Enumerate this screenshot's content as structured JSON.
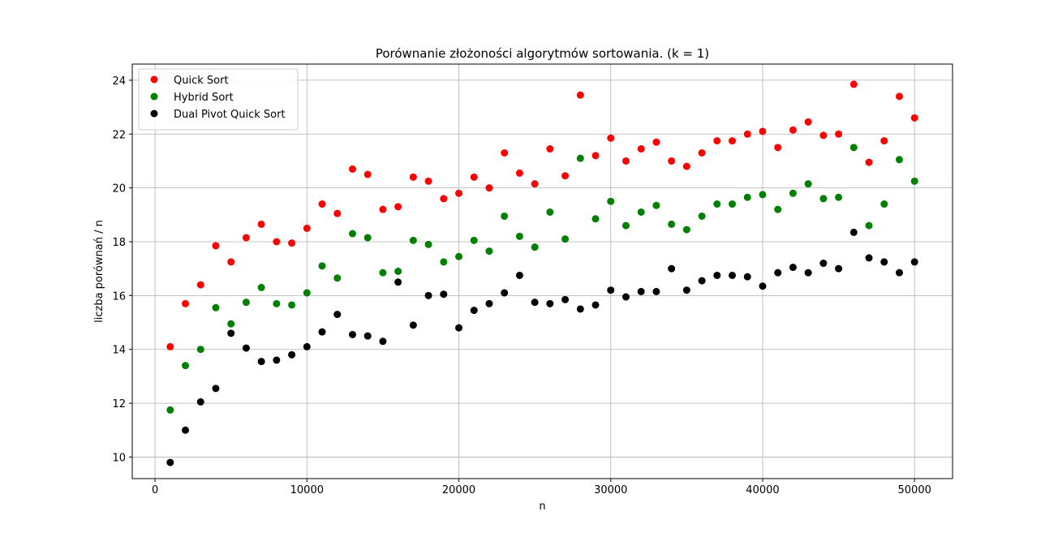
{
  "chart_data": {
    "type": "scatter",
    "title": "Porównanie złożoności algorytmów sortowania. (k = 1)",
    "xlabel": "n",
    "ylabel": "liczba porównań / n",
    "xlim": [
      -1500,
      52500
    ],
    "ylim": [
      9.2,
      24.6
    ],
    "xticks": [
      0,
      10000,
      20000,
      30000,
      40000,
      50000
    ],
    "yticks": [
      10,
      12,
      14,
      16,
      18,
      20,
      22,
      24
    ],
    "grid": true,
    "legend_position": "top-left",
    "x": [
      1000,
      2000,
      3000,
      4000,
      5000,
      6000,
      7000,
      8000,
      9000,
      10000,
      11000,
      12000,
      13000,
      14000,
      15000,
      16000,
      17000,
      18000,
      19000,
      20000,
      21000,
      22000,
      23000,
      24000,
      25000,
      26000,
      27000,
      28000,
      29000,
      30000,
      31000,
      32000,
      33000,
      34000,
      35000,
      36000,
      37000,
      38000,
      39000,
      40000,
      41000,
      42000,
      43000,
      44000,
      45000,
      46000,
      47000,
      48000,
      49000,
      50000
    ],
    "series": [
      {
        "name": "Quick Sort",
        "color": "#ff0000",
        "values": [
          14.1,
          15.7,
          16.4,
          17.85,
          17.25,
          18.15,
          18.65,
          18.0,
          17.95,
          18.5,
          19.4,
          19.05,
          20.7,
          20.5,
          19.2,
          19.3,
          20.4,
          20.25,
          19.6,
          19.8,
          20.4,
          20.0,
          21.3,
          20.55,
          20.15,
          21.45,
          20.45,
          23.45,
          21.2,
          21.85,
          21.0,
          21.45,
          21.7,
          21.0,
          20.8,
          21.3,
          21.75,
          21.75,
          22.0,
          22.1,
          21.5,
          22.15,
          22.45,
          21.95,
          22.0,
          23.85,
          20.95,
          21.75,
          23.4,
          22.6
        ]
      },
      {
        "name": "Hybrid Sort",
        "color": "#008000",
        "values": [
          11.75,
          13.4,
          14.0,
          15.55,
          14.95,
          15.75,
          16.3,
          15.7,
          15.65,
          16.1,
          17.1,
          16.65,
          18.3,
          18.15,
          16.85,
          16.9,
          18.05,
          17.9,
          17.25,
          17.45,
          18.05,
          17.65,
          18.95,
          18.2,
          17.8,
          19.1,
          18.1,
          21.1,
          18.85,
          19.5,
          18.6,
          19.1,
          19.35,
          18.65,
          18.45,
          18.95,
          19.4,
          19.4,
          19.65,
          19.75,
          19.2,
          19.8,
          20.15,
          19.6,
          19.65,
          21.5,
          18.6,
          19.4,
          21.05,
          20.25
        ]
      },
      {
        "name": "Dual Pivot Quick Sort",
        "color": "#000000",
        "values": [
          9.8,
          11.0,
          12.05,
          12.55,
          14.6,
          14.05,
          13.55,
          13.6,
          13.8,
          14.1,
          14.65,
          15.3,
          14.55,
          14.5,
          14.3,
          16.5,
          14.9,
          16.0,
          16.05,
          14.8,
          15.45,
          15.7,
          16.1,
          16.75,
          15.75,
          15.7,
          15.85,
          15.5,
          15.65,
          16.2,
          15.95,
          16.15,
          16.15,
          17.0,
          16.2,
          16.55,
          16.75,
          16.75,
          16.7,
          16.35,
          16.85,
          17.05,
          16.85,
          17.2,
          17.0,
          18.35,
          17.4,
          17.25,
          16.85,
          17.25
        ]
      }
    ]
  }
}
